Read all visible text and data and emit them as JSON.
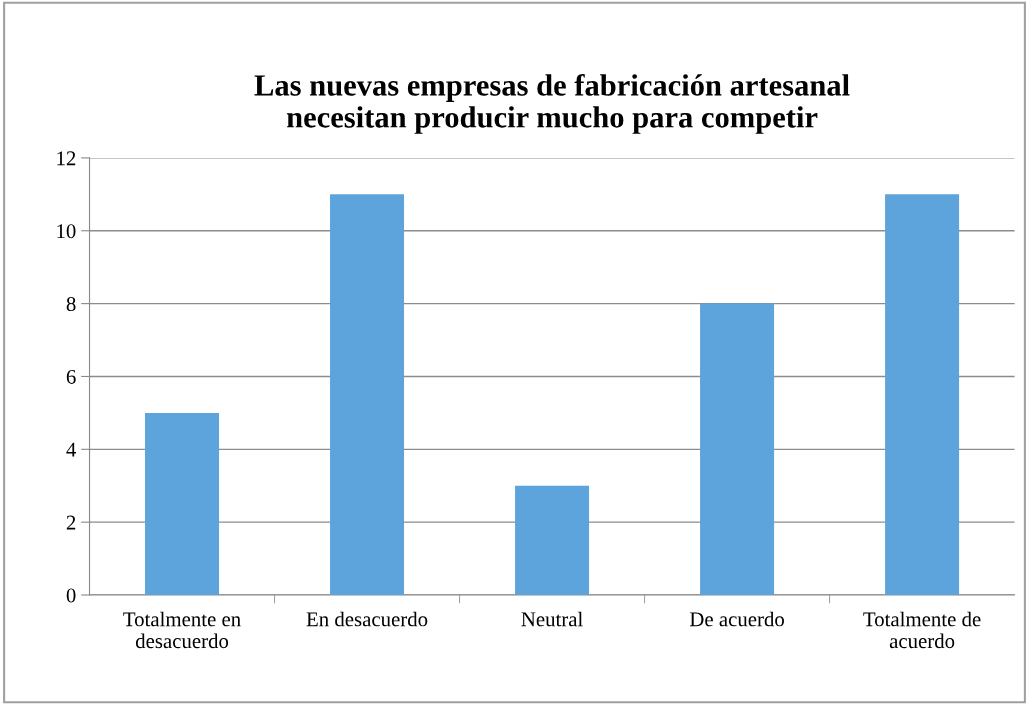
{
  "chart_data": {
    "type": "bar",
    "title": "Las nuevas empresas de fabricación artesanal\nnecesitan producir mucho para competir",
    "categories": [
      "Totalmente en\ndesacuerdo",
      "En desacuerdo",
      "Neutral",
      "De acuerdo",
      "Totalmente de\nacuerdo"
    ],
    "values": [
      5,
      11,
      3,
      8,
      11
    ],
    "color": "#5da3dc",
    "ylim": [
      0,
      12
    ],
    "yticks": [
      0,
      2,
      4,
      6,
      8,
      10,
      12
    ],
    "grid": "y"
  }
}
